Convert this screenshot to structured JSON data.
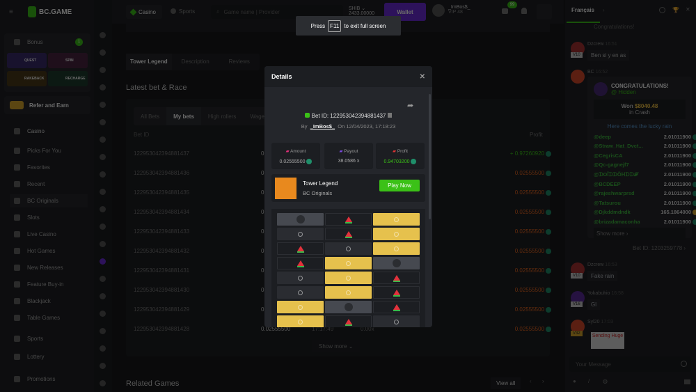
{
  "brand": {
    "name": "BC.GAME",
    "accent": "#3bc117",
    "wallet": "#6b2bd9"
  },
  "topbar": {
    "casino": "Casino",
    "sports": "Sports",
    "search_placeholder": "Game name | Provider",
    "currency": "SHIB",
    "balance": "2433.00000",
    "wallet": "Wallet",
    "username": "_ImBos$_",
    "vip": "VIP 48",
    "notif_count": "99"
  },
  "sidebar": {
    "bonus": "Bonus",
    "bonus_count": "1",
    "quest": "QUEST",
    "spin": "SPIN",
    "rakeback": "RAKEBACK",
    "recharge": "RECHARGE",
    "refer": "Refer and Earn",
    "items": [
      {
        "label": "Casino"
      },
      {
        "label": "Picks For You"
      },
      {
        "label": "Favorites"
      },
      {
        "label": "Recent"
      },
      {
        "label": "BC Originals"
      },
      {
        "label": "Slots"
      },
      {
        "label": "Live Casino"
      },
      {
        "label": "Hot Games"
      },
      {
        "label": "New Releases"
      },
      {
        "label": "Feature Buy-in"
      },
      {
        "label": "Blackjack"
      },
      {
        "label": "Table Games"
      },
      {
        "label": "Sports"
      },
      {
        "label": "Lottery"
      },
      {
        "label": "Promotions"
      }
    ]
  },
  "main": {
    "tabs": [
      "Tower Legend",
      "Description",
      "Reviews"
    ],
    "section_title": "Latest bet & Race",
    "bet_tabs": [
      "All Bets",
      "My bets",
      "High rollers",
      "Wager"
    ],
    "col_betid": "Bet ID",
    "col_profit": "Profit",
    "rows": [
      {
        "id": "122953042394881437",
        "amount": "0",
        "profit": "+ 0.97260920"
      },
      {
        "id": "122953042394881436",
        "amount": "0",
        "profit": "0.02555500"
      },
      {
        "id": "122953042394881435",
        "amount": "0",
        "profit": "0.02555500"
      },
      {
        "id": "122953042394881434",
        "amount": "0",
        "profit": "0.02555500"
      },
      {
        "id": "122953042394881433",
        "amount": "0",
        "profit": "0.02555500"
      },
      {
        "id": "122953042394881432",
        "amount": "0",
        "profit": "0.02555500"
      },
      {
        "id": "122953042394881431",
        "amount": "0",
        "profit": "0.02555500"
      },
      {
        "id": "122953042394881430",
        "amount": "0",
        "profit": "0.02555500"
      },
      {
        "id": "122953042394881429",
        "amount": "0",
        "profit": "0.02555500"
      },
      {
        "id": "122953042394881428",
        "amount": "0.02555500",
        "time": "17:17:49",
        "payout": "0.00x",
        "profit": "0.02555500"
      }
    ],
    "show_more": "Show more",
    "related": "Related Games",
    "view_all": "View all"
  },
  "toast": {
    "press": "Press",
    "key": "F11",
    "rest": "to exit full screen"
  },
  "modal": {
    "title": "Details",
    "bet_id": "Bet ID: 122953042394881437",
    "by": "By",
    "user": "_ImBos$_",
    "on": "On 12/04/2023, 17:18:23",
    "amount_label": "Amount",
    "amount": "0.02555500",
    "payout_label": "Payout",
    "payout": "38.0586 x",
    "profit_label": "Profit",
    "profit": "0.94703200",
    "game": "Tower Legend",
    "provider": "BC Originals",
    "play": "Play Now",
    "grid": [
      [
        "bomb",
        "melon",
        "gold"
      ],
      [
        "hidden",
        "melon",
        "gold"
      ],
      [
        "melon",
        "hidden",
        "gold"
      ],
      [
        "melon",
        "gold",
        "bomb"
      ],
      [
        "hidden",
        "gold",
        "melon"
      ],
      [
        "hidden",
        "gold",
        "melon"
      ],
      [
        "gold",
        "bomb",
        "melon"
      ],
      [
        "gold",
        "melon",
        "hidden"
      ]
    ]
  },
  "chat": {
    "lang": "Français",
    "congrats_top": "Congratulations!",
    "msg1": {
      "user": "Dzcrew",
      "time": "16:51",
      "vip": "V10",
      "text": "Ben si y en as"
    },
    "bc": {
      "user": "BC",
      "time": "16:52",
      "title": "CONGRATULATIONS!",
      "hidden": "@ Hidden",
      "won": "Won",
      "amount": "$8040.48",
      "in": "in Crash",
      "rain": "Here comes the lucky rain",
      "rain_list": [
        {
          "u": "@deep",
          "a": "2.01011900"
        },
        {
          "u": "@Straw_Hat_Dvct...",
          "a": "2.01011900"
        },
        {
          "u": "@CegrisCA",
          "a": "2.01011900"
        },
        {
          "u": "@Qc-gagnejf7",
          "a": "2.01011900"
        },
        {
          "u": "@ᗪOĨᗪᗪÕᕼᗪᗪ𝓕",
          "a": "2.01011900"
        },
        {
          "u": "@BCDEEP",
          "a": "2.01011900"
        },
        {
          "u": "@rajeshwarprsd",
          "a": "2.01011900"
        },
        {
          "u": "@Tatsurou",
          "a": "2.01011900"
        },
        {
          "u": "@Djkddmdndk",
          "a": "165.1864000"
        },
        {
          "u": "@brizadamaconha",
          "a": "2.01011900"
        }
      ],
      "show_more": "Show more",
      "bet_id": "Bet ID: 1203259778"
    },
    "msg2": {
      "user": "Dzcrew",
      "time": "16:53",
      "vip": "V10",
      "text": "Fake rain"
    },
    "msg3": {
      "user": "Yokabuhio",
      "time": "16:58",
      "vip": "V16",
      "text": "Gl"
    },
    "msg4": {
      "user": "Syl20",
      "time": "17:03",
      "vip": "V32",
      "sticker": "Sending Huge"
    },
    "input_placeholder": "Your Message"
  }
}
